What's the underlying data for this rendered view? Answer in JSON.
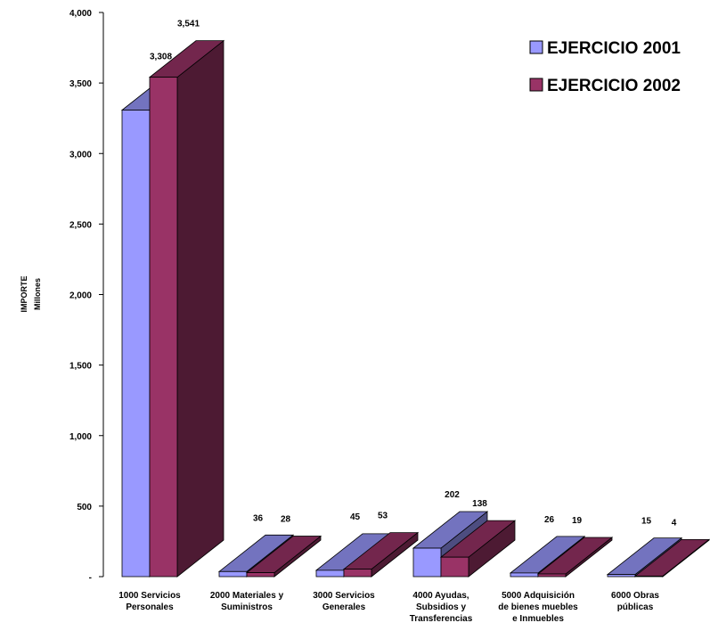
{
  "chart_data": {
    "type": "bar",
    "style": "3d-clustered-column",
    "ylabel": [
      "IMPORTE",
      "Millones"
    ],
    "ylim": [
      0,
      4000
    ],
    "yticks": [
      0,
      500,
      1000,
      1500,
      2000,
      2500,
      3000,
      3500,
      4000
    ],
    "ytick_labels": [
      "-",
      "500",
      "1,000",
      "1,500",
      "2,000",
      "2,500",
      "3,000",
      "3,500",
      "4,000"
    ],
    "categories": [
      [
        "1000  Servicios",
        "Personales"
      ],
      [
        "2000  Materiales y",
        "Suministros"
      ],
      [
        "3000  Servicios",
        "Generales"
      ],
      [
        "4000 Ayudas,",
        "Subsidios y",
        "Transferencias"
      ],
      [
        "5000 Adquisición",
        "de bienes muebles",
        "e Inmuebles"
      ],
      [
        "6000 Obras",
        "públicas"
      ]
    ],
    "series": [
      {
        "name": "EJERCICIO 2001",
        "values": [
          3308,
          36,
          45,
          202,
          26,
          15
        ],
        "labels": [
          "3,308",
          "36",
          "45",
          "202",
          "26",
          "15"
        ],
        "color": "#9999ff"
      },
      {
        "name": "EJERCICIO 2002",
        "values": [
          3541,
          28,
          53,
          138,
          19,
          4
        ],
        "labels": [
          "3,541",
          "28",
          "53",
          "138",
          "19",
          "4"
        ],
        "color": "#993366"
      }
    ],
    "legend_position": "top-right",
    "grid": false
  }
}
